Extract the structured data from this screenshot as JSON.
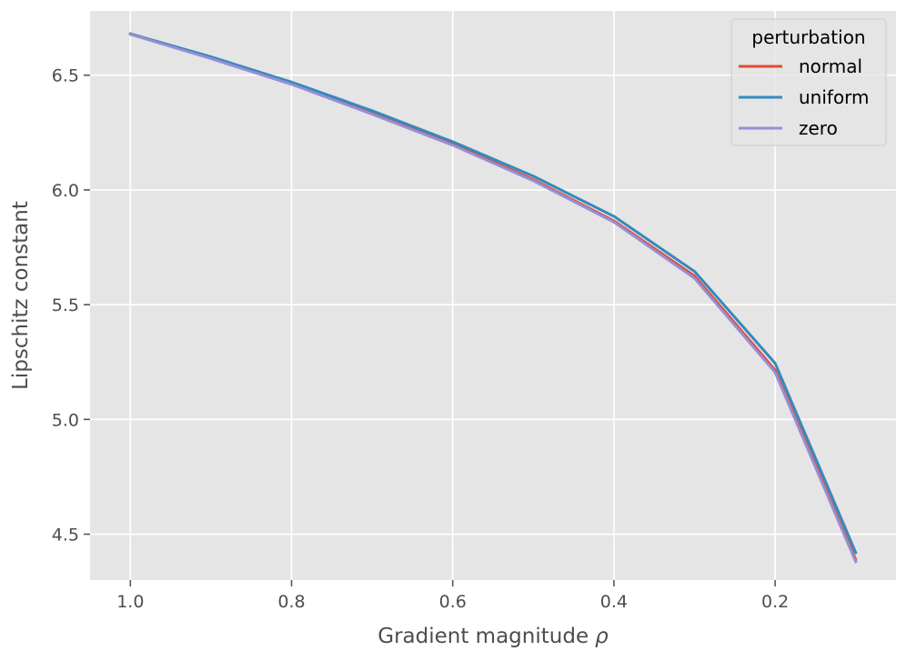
{
  "chart_data": {
    "type": "line",
    "title": "",
    "xlabel": "Gradient magnitude",
    "xlabel_symbol": "ρ",
    "ylabel": "Lipschitz constant",
    "x": [
      1.0,
      0.9,
      0.8,
      0.7,
      0.6,
      0.5,
      0.4,
      0.3,
      0.2,
      0.1
    ],
    "xlim": [
      1.05,
      0.05
    ],
    "ylim": [
      4.3,
      6.78
    ],
    "x_reversed": true,
    "xticks": [
      1.0,
      0.8,
      0.6,
      0.4,
      0.2
    ],
    "xtick_labels": [
      "1.0",
      "0.8",
      "0.6",
      "0.4",
      "0.2"
    ],
    "yticks": [
      4.5,
      5.0,
      5.5,
      6.0,
      6.5
    ],
    "ytick_labels": [
      "4.5",
      "5.0",
      "5.5",
      "6.0",
      "6.5"
    ],
    "grid": true,
    "legend": {
      "title": "perturbation",
      "placement": "top-right"
    },
    "series": [
      {
        "name": "normal",
        "color": "#E24A33",
        "values": [
          6.68,
          6.575,
          6.465,
          6.335,
          6.2,
          6.045,
          5.865,
          5.625,
          5.215,
          4.39
        ]
      },
      {
        "name": "uniform",
        "color": "#348ABD",
        "values": [
          6.68,
          6.58,
          6.47,
          6.345,
          6.21,
          6.06,
          5.885,
          5.645,
          5.245,
          4.42
        ]
      },
      {
        "name": "zero",
        "color": "#988ED5",
        "values": [
          6.678,
          6.572,
          6.46,
          6.33,
          6.195,
          6.04,
          5.86,
          5.615,
          5.205,
          4.38
        ]
      }
    ],
    "style": {
      "background": "#E5E5E5",
      "grid_color": "#FFFFFF"
    }
  }
}
